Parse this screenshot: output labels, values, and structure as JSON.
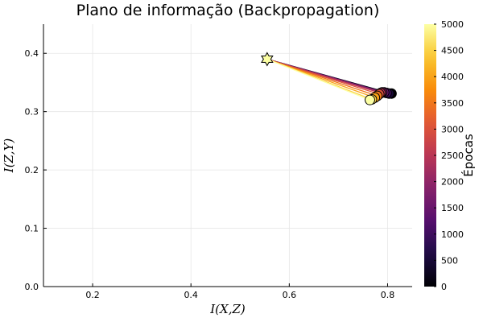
{
  "chart_data": {
    "type": "scatter",
    "title": "Plano de informação (Backpropagation)",
    "xlabel": "I(X,Z)",
    "ylabel": "I(Z,Y)",
    "xlim": [
      0.1,
      0.85
    ],
    "ylim": [
      0.0,
      0.45
    ],
    "x_ticks": [
      0.2,
      0.4,
      0.6,
      0.8
    ],
    "x_tick_labels": [
      "0.2",
      "0.4",
      "0.6",
      "0.8"
    ],
    "y_ticks": [
      0.0,
      0.1,
      0.2,
      0.3,
      0.4
    ],
    "y_tick_labels": [
      "0.0",
      "0.1",
      "0.2",
      "0.3",
      "0.4"
    ],
    "grid": true,
    "legend": "none",
    "colorbar": {
      "label": "Épocas",
      "range": [
        0,
        5000
      ],
      "ticks": [
        0,
        500,
        1000,
        1500,
        2000,
        2500,
        3000,
        3500,
        4000,
        4500,
        5000
      ],
      "tick_labels": [
        "0",
        "500",
        "1000",
        "1500",
        "2000",
        "2500",
        "3000",
        "3500",
        "4000",
        "4500",
        "5000"
      ],
      "colormap": "inferno"
    },
    "star_point": {
      "x": 0.555,
      "y": 0.39
    },
    "points": [
      {
        "epoch": 0,
        "x": 0.808,
        "y": 0.331
      },
      {
        "epoch": 500,
        "x": 0.803,
        "y": 0.331
      },
      {
        "epoch": 1000,
        "x": 0.798,
        "y": 0.332
      },
      {
        "epoch": 1500,
        "x": 0.793,
        "y": 0.333
      },
      {
        "epoch": 2000,
        "x": 0.789,
        "y": 0.333
      },
      {
        "epoch": 2500,
        "x": 0.786,
        "y": 0.332
      },
      {
        "epoch": 3000,
        "x": 0.783,
        "y": 0.33
      },
      {
        "epoch": 3500,
        "x": 0.779,
        "y": 0.327
      },
      {
        "epoch": 4000,
        "x": 0.774,
        "y": 0.324
      },
      {
        "epoch": 4500,
        "x": 0.768,
        "y": 0.321
      },
      {
        "epoch": 5000,
        "x": 0.764,
        "y": 0.32
      }
    ]
  }
}
